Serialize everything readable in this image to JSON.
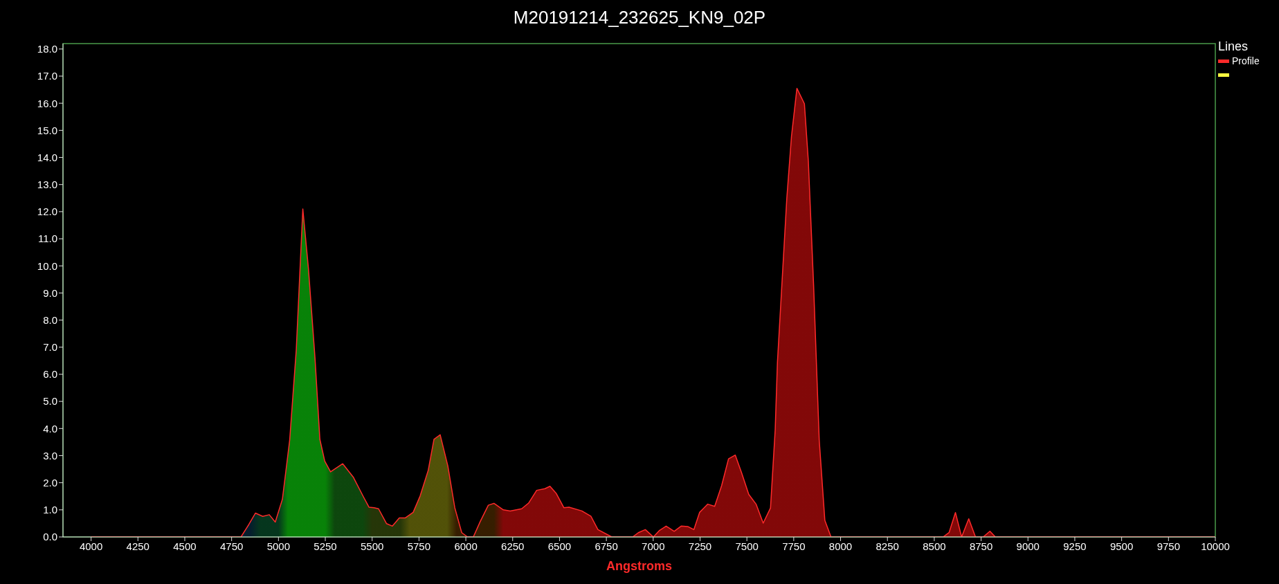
{
  "chart_data": {
    "type": "area",
    "title": "M20191214_232625_KN9_02P",
    "xlabel": "Angstroms",
    "legend_title": "Lines",
    "legend": "top right",
    "xlim": [
      3850,
      10000
    ],
    "xticks": [
      4000,
      4250,
      4500,
      4750,
      5000,
      5250,
      5500,
      5750,
      6000,
      6250,
      6500,
      6750,
      7000,
      7250,
      7500,
      7750,
      8000,
      8250,
      8500,
      8750,
      9000,
      9250,
      9500,
      9750,
      10000
    ],
    "ylim": [
      0,
      18.2
    ],
    "yticks": [
      {
        "value": 0,
        "label": "0.0"
      },
      {
        "value": 1,
        "label": "1.0"
      },
      {
        "value": 2,
        "label": "2.0"
      },
      {
        "value": 3,
        "label": "3.0"
      },
      {
        "value": 4,
        "label": "4.0"
      },
      {
        "value": 5,
        "label": "5.0"
      },
      {
        "value": 6,
        "label": "6.0"
      },
      {
        "value": 7,
        "label": "7.0"
      },
      {
        "value": 8,
        "label": "8.0"
      },
      {
        "value": 9,
        "label": "9.0"
      },
      {
        "value": 10,
        "label": "10.0"
      },
      {
        "value": 11,
        "label": "11.0"
      },
      {
        "value": 12,
        "label": "12.0"
      },
      {
        "value": 13,
        "label": "13.0"
      },
      {
        "value": 14,
        "label": "14.0"
      },
      {
        "value": 15,
        "label": "15.0"
      },
      {
        "value": 16,
        "label": "16.0"
      },
      {
        "value": 17,
        "label": "17.0"
      },
      {
        "value": 18,
        "label": "18.0"
      }
    ],
    "series": [
      {
        "name": "Profile",
        "color": "#ff2a2a",
        "x": [
          4000,
          4800,
          4842,
          4877,
          4916,
          4951,
          4983,
          5021,
          5060,
          5095,
          5130,
          5160,
          5195,
          5221,
          5247,
          5278,
          5343,
          5400,
          5452,
          5483,
          5510,
          5534,
          5577,
          5608,
          5645,
          5676,
          5719,
          5756,
          5799,
          5830,
          5863,
          5904,
          5941,
          5978,
          6009,
          6040,
          6077,
          6120,
          6150,
          6200,
          6237,
          6298,
          6335,
          6378,
          6422,
          6449,
          6483,
          6523,
          6551,
          6619,
          6668,
          6705,
          6779,
          6890,
          6921,
          6958,
          7001,
          7032,
          7069,
          7112,
          7149,
          7186,
          7217,
          7248,
          7291,
          7328,
          7365,
          7402,
          7438,
          7472,
          7510,
          7549,
          7587,
          7626,
          7651,
          7663,
          7713,
          7738,
          7767,
          7807,
          7828,
          7856,
          7886,
          7916,
          7949,
          8547,
          8579,
          8613,
          8646,
          8684,
          8720,
          8761,
          8797,
          8826,
          10000
        ],
        "values": [
          0,
          0,
          0.46,
          0.88,
          0.76,
          0.82,
          0.55,
          1.39,
          3.58,
          6.9,
          12.1,
          9.9,
          6.6,
          3.6,
          2.8,
          2.4,
          2.7,
          2.2,
          1.5,
          1.1,
          1.08,
          1.04,
          0.49,
          0.4,
          0.7,
          0.7,
          0.91,
          1.51,
          2.45,
          3.6,
          3.77,
          2.62,
          1.08,
          0.16,
          0,
          0,
          0.57,
          1.17,
          1.24,
          1.0,
          0.96,
          1.04,
          1.25,
          1.72,
          1.78,
          1.87,
          1.6,
          1.08,
          1.1,
          0.96,
          0.76,
          0.27,
          0,
          0,
          0.16,
          0.27,
          0,
          0.23,
          0.4,
          0.21,
          0.4,
          0.38,
          0.27,
          0.91,
          1.21,
          1.13,
          1.89,
          2.88,
          3.02,
          2.36,
          1.57,
          1.21,
          0.51,
          1.07,
          3.95,
          6.44,
          12.49,
          14.78,
          16.55,
          15.98,
          13.86,
          9.29,
          3.58,
          0.61,
          0,
          0,
          0.16,
          0.9,
          0,
          0.67,
          0,
          0,
          0.21,
          0,
          0
        ]
      },
      {
        "color": "#ffff40"
      }
    ]
  }
}
